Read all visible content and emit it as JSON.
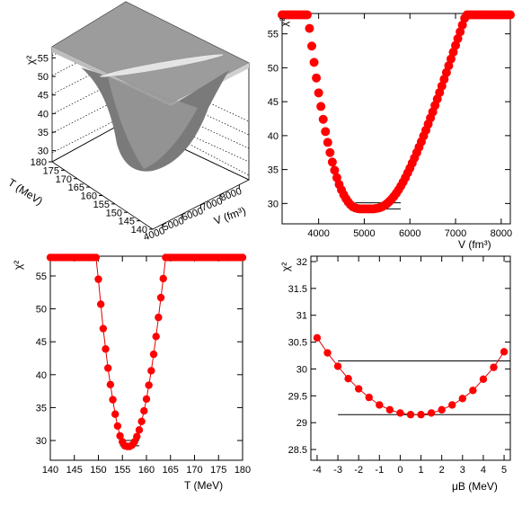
{
  "figure": {
    "panels": [
      {
        "title": "",
        "xlabel": "",
        "ylabel": "χ²"
      },
      {
        "title": "",
        "xlabel": "V (fm³)",
        "ylabel": "χ²"
      },
      {
        "title": "",
        "xlabel": "T (MeV)",
        "ylabel": "χ²"
      },
      {
        "title": "",
        "xlabel": "μB (MeV)",
        "ylabel": "χ²"
      }
    ]
  },
  "colors": {
    "marker": "#ff0000",
    "line": "#e00000",
    "surface": "#8a8a8a"
  },
  "chart_data": [
    {
      "type": "surface",
      "title": "",
      "xlabel": "V (fm³)",
      "ylabel": "T (MeV)",
      "zlabel": "χ²",
      "xticks": [
        4000,
        5000,
        6000,
        7000,
        8000
      ],
      "yticks": [
        140,
        145,
        150,
        155,
        160,
        165,
        170,
        175,
        180
      ],
      "zticks": [
        30,
        35,
        40,
        45,
        50,
        55
      ],
      "xlim": [
        3500,
        8500
      ],
      "ylim": [
        140,
        180
      ],
      "zlim": [
        27,
        58
      ],
      "minimum": {
        "x": 5300,
        "y": 156.5,
        "z": 29.2
      }
    },
    {
      "type": "scatter",
      "title": "",
      "xlabel": "V (fm³)",
      "ylabel": "χ²",
      "xlim": [
        3200,
        8200
      ],
      "ylim": [
        27,
        58
      ],
      "xticks": [
        4000,
        5000,
        6000,
        7000,
        8000
      ],
      "yticks": [
        30,
        35,
        40,
        45,
        50,
        55
      ],
      "hlines": [
        {
          "y": 30.1,
          "x0": 4800,
          "x1": 5800
        },
        {
          "y": 29.2,
          "x0": 4800,
          "x1": 5800
        }
      ],
      "series": [
        {
          "name": "",
          "x": [
            3200,
            3250,
            3300,
            3350,
            3400,
            3450,
            3500,
            3550,
            3600,
            3650,
            3700,
            3750,
            3800,
            3850,
            3900,
            3950,
            4000,
            4050,
            4100,
            4150,
            4200,
            4250,
            4300,
            4350,
            4400,
            4450,
            4500,
            4550,
            4600,
            4650,
            4700,
            4750,
            4800,
            4850,
            4900,
            4950,
            5000,
            5050,
            5100,
            5150,
            5200,
            5250,
            5300,
            5350,
            5400,
            5450,
            5500,
            5550,
            5600,
            5650,
            5700,
            5750,
            5800,
            5850,
            5900,
            5950,
            6000,
            6050,
            6100,
            6150,
            6200,
            6250,
            6300,
            6350,
            6400,
            6450,
            6500,
            6550,
            6600,
            6650,
            6700,
            6750,
            6800,
            6850,
            6900,
            6950,
            7000,
            7050,
            7100,
            7150,
            7200,
            7250,
            7300,
            7350,
            7400,
            7450,
            7500,
            7550,
            7600,
            7650,
            7700,
            7750,
            7800,
            7850,
            7900,
            7950,
            8000,
            8050,
            8100,
            8150,
            8200
          ],
          "y": [
            57.8,
            57.8,
            57.8,
            57.8,
            57.8,
            57.8,
            57.8,
            57.8,
            57.8,
            57.8,
            57.8,
            57.8,
            55.8,
            53.2,
            50.8,
            48.5,
            46.3,
            44.3,
            42.4,
            40.6,
            39.0,
            37.5,
            36.1,
            34.9,
            33.8,
            32.8,
            32.0,
            31.3,
            30.7,
            30.2,
            29.8,
            29.5,
            29.35,
            29.25,
            29.2,
            29.2,
            29.2,
            29.2,
            29.2,
            29.2,
            29.2,
            29.25,
            29.3,
            29.4,
            29.55,
            29.75,
            30.0,
            30.3,
            30.65,
            31.05,
            31.5,
            32.0,
            32.55,
            33.15,
            33.8,
            34.5,
            35.2,
            35.95,
            36.7,
            37.5,
            38.3,
            39.1,
            39.95,
            40.8,
            41.7,
            42.6,
            43.5,
            44.45,
            45.4,
            46.35,
            47.3,
            48.3,
            49.3,
            50.3,
            51.3,
            52.3,
            53.3,
            54.3,
            55.3,
            56.3,
            57.3,
            57.8,
            57.8,
            57.8,
            57.8,
            57.8,
            57.8,
            57.8,
            57.8,
            57.8,
            57.8,
            57.8,
            57.8,
            57.8,
            57.8,
            57.8,
            57.8,
            57.8,
            57.8,
            57.8,
            57.8
          ]
        }
      ]
    },
    {
      "type": "line",
      "title": "",
      "xlabel": "T (MeV)",
      "ylabel": "χ²",
      "xlim": [
        140,
        180
      ],
      "ylim": [
        27,
        58
      ],
      "xticks": [
        140,
        145,
        150,
        155,
        160,
        165,
        170,
        175,
        180
      ],
      "yticks": [
        30,
        35,
        40,
        45,
        50,
        55
      ],
      "hlines": [
        {
          "y": 30.0,
          "x0": 154.5,
          "x1": 158.5
        },
        {
          "y": 29.2,
          "x0": 154.5,
          "x1": 158.5
        }
      ],
      "series": [
        {
          "name": "",
          "x": [
            140,
            140.5,
            141,
            141.5,
            142,
            142.5,
            143,
            143.5,
            144,
            144.5,
            145,
            145.5,
            146,
            146.5,
            147,
            147.5,
            148,
            148.5,
            149,
            149.5,
            150,
            150.5,
            151,
            151.5,
            152,
            152.5,
            153,
            153.5,
            154,
            154.5,
            155,
            155.5,
            156,
            156.5,
            157,
            157.5,
            158,
            158.5,
            159,
            159.5,
            160,
            160.5,
            161,
            161.5,
            162,
            162.5,
            163,
            163.5,
            164,
            164.5,
            165,
            165.5,
            166,
            166.5,
            167,
            167.5,
            168,
            168.5,
            169,
            169.5,
            170,
            170.5,
            171,
            171.5,
            172,
            172.5,
            173,
            173.5,
            174,
            174.5,
            175,
            175.5,
            176,
            176.5,
            177,
            177.5,
            178,
            178.5,
            179,
            179.5,
            180
          ],
          "y": [
            57.8,
            57.8,
            57.8,
            57.8,
            57.8,
            57.8,
            57.8,
            57.8,
            57.8,
            57.8,
            57.8,
            57.8,
            57.8,
            57.8,
            57.8,
            57.8,
            57.8,
            57.8,
            57.8,
            57.8,
            54.5,
            50.7,
            47.0,
            43.9,
            41.0,
            38.5,
            36.2,
            34.0,
            32.2,
            30.7,
            29.8,
            29.2,
            29.1,
            29.1,
            29.3,
            29.8,
            30.6,
            31.6,
            32.9,
            34.5,
            36.3,
            38.4,
            40.6,
            43.1,
            45.8,
            48.7,
            51.7,
            54.6,
            57.8,
            57.8,
            57.8,
            57.8,
            57.8,
            57.8,
            57.8,
            57.8,
            57.8,
            57.8,
            57.8,
            57.8,
            57.8,
            57.8,
            57.8,
            57.8,
            57.8,
            57.8,
            57.8,
            57.8,
            57.8,
            57.8,
            57.8,
            57.8,
            57.8,
            57.8,
            57.8,
            57.8,
            57.8,
            57.8,
            57.8,
            57.8,
            57.8
          ]
        }
      ]
    },
    {
      "type": "line",
      "title": "",
      "xlabel": "μB (MeV)",
      "ylabel": "χ²",
      "xlim": [
        -4.3,
        5.3
      ],
      "ylim": [
        28.3,
        32.1
      ],
      "xticks": [
        -4,
        -3,
        -2,
        -1,
        0,
        1,
        2,
        3,
        4,
        5
      ],
      "yticks": [
        28.5,
        29,
        29.5,
        30,
        30.5,
        31,
        31.5,
        32
      ],
      "yticklabels": [
        "28.5",
        "29",
        "29.5",
        "30",
        "30.5",
        "31",
        "31.5",
        "32"
      ],
      "hlines": [
        {
          "y": 30.15,
          "x0": -3.0,
          "x1": 5.3
        },
        {
          "y": 29.15,
          "x0": -3.0,
          "x1": 5.3
        }
      ],
      "series": [
        {
          "name": "",
          "x": [
            -4.0,
            -3.5,
            -3.0,
            -2.5,
            -2.0,
            -1.5,
            -1.0,
            -0.5,
            0.0,
            0.5,
            1.0,
            1.5,
            2.0,
            2.5,
            3.0,
            3.5,
            4.0,
            4.5,
            5.0
          ],
          "y": [
            30.58,
            30.3,
            30.05,
            29.82,
            29.63,
            29.47,
            29.33,
            29.24,
            29.18,
            29.15,
            29.15,
            29.18,
            29.24,
            29.33,
            29.45,
            29.6,
            29.81,
            30.03,
            30.32
          ]
        }
      ]
    }
  ]
}
